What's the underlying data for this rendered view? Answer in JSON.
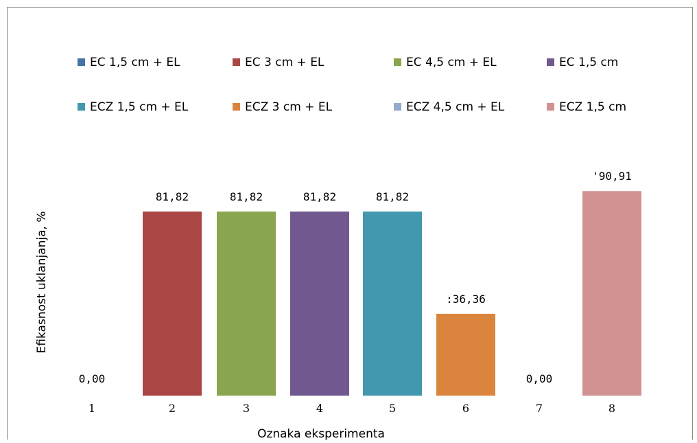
{
  "chart_data": {
    "type": "bar",
    "xlabel": "Oznaka eksperimenta",
    "ylabel": "Efikasnost uklanjanja, %",
    "ylim": [
      0,
      100
    ],
    "grid": false,
    "legend_position": "top",
    "categories": [
      "1",
      "2",
      "3",
      "4",
      "5",
      "6",
      "7",
      "8"
    ],
    "series": [
      {
        "name": "EC 1,5 cm + EL",
        "color": "#4572A7",
        "category": "1",
        "value": 0.0,
        "label": "0,00"
      },
      {
        "name": "EC 3 cm + EL",
        "color": "#AA4643",
        "category": "2",
        "value": 81.82,
        "label": "81,82"
      },
      {
        "name": "EC 4,5 cm + EL",
        "color": "#89A54E",
        "category": "3",
        "value": 81.82,
        "label": "81,82"
      },
      {
        "name": "EC 1,5 cm",
        "color": "#71588F",
        "category": "4",
        "value": 81.82,
        "label": "81,82"
      },
      {
        "name": "ECZ 1,5 cm + EL",
        "color": "#4198AF",
        "category": "5",
        "value": 81.82,
        "label": "81,82"
      },
      {
        "name": "ECZ 3 cm + EL",
        "color": "#DB843D",
        "category": "6",
        "value": 36.36,
        "label": ":36,36"
      },
      {
        "name": "ECZ 4,5 cm + EL",
        "color": "#93A9CF",
        "category": "7",
        "value": 0.0,
        "label": "0,00"
      },
      {
        "name": "ECZ 1,5 cm",
        "color": "#D19392",
        "category": "8",
        "value": 90.91,
        "label": "'90,91"
      }
    ]
  }
}
